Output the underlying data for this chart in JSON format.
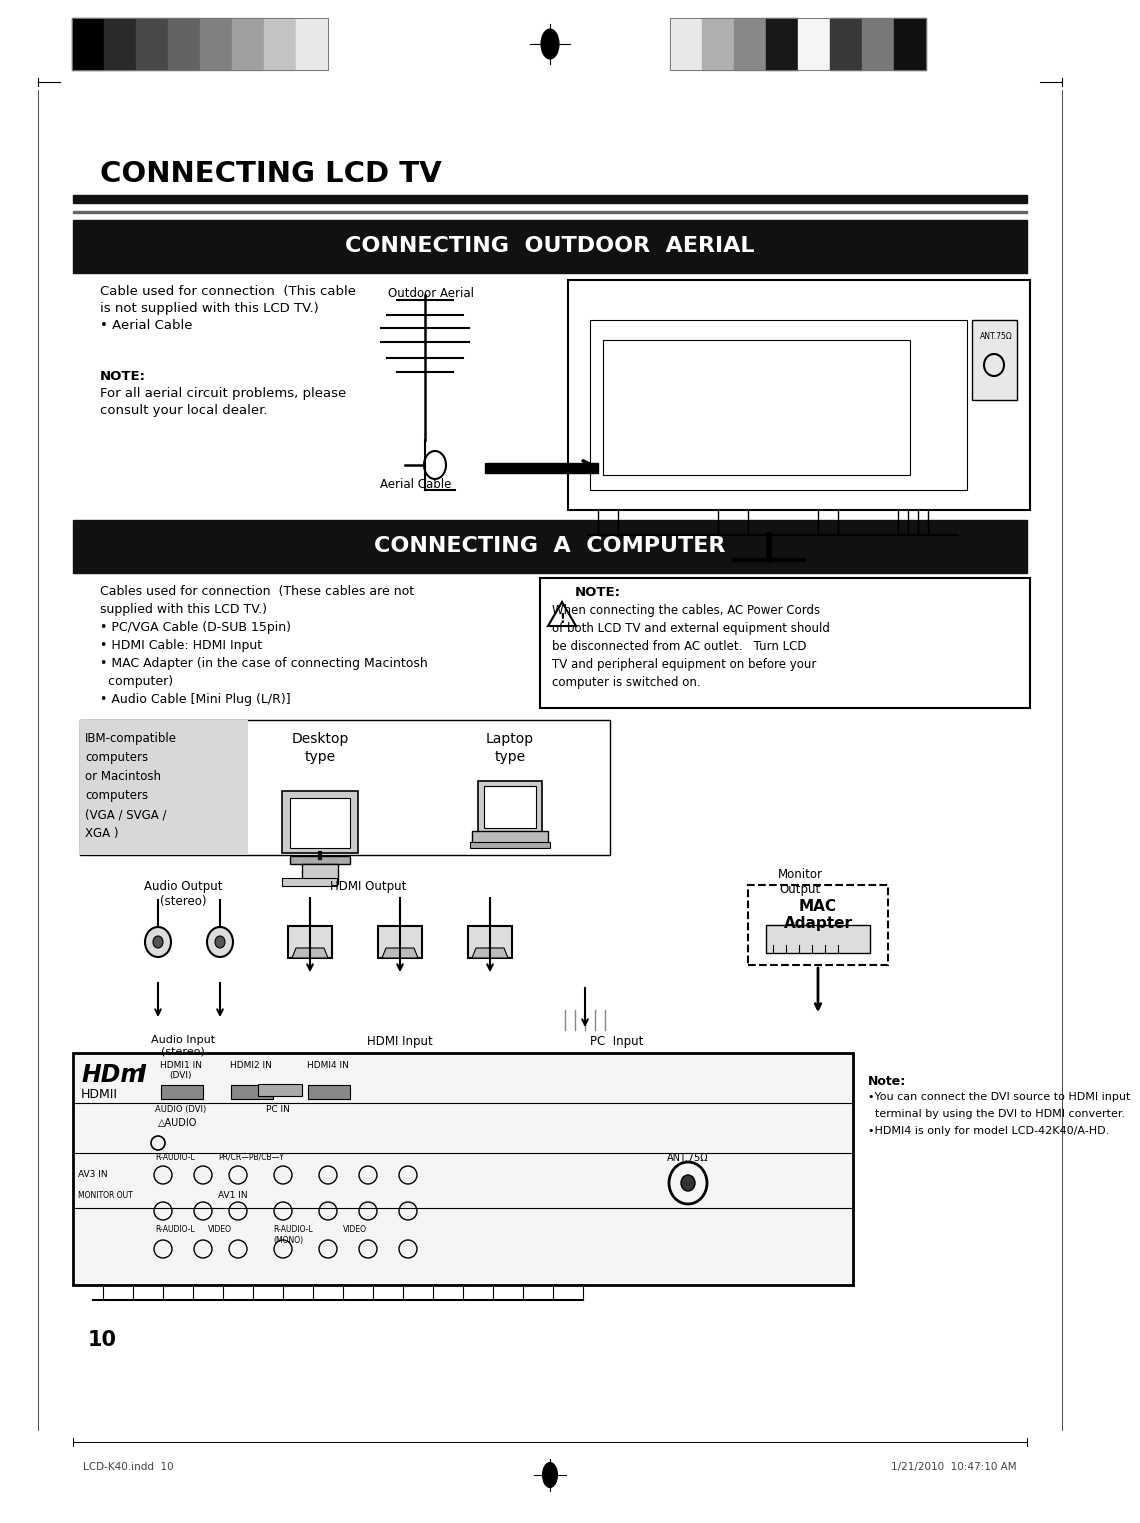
{
  "page_bg": "#ffffff",
  "page_width": 10.8,
  "page_height": 15.03,
  "title_main": "CONNECTING LCD TV",
  "section1_header": "CONNECTING  OUTDOOR  AERIAL",
  "section2_header": "CONNECTING  A  COMPUTER",
  "section1_text_left_lines": [
    "Cable used for connection  (This cable",
    "is not supplied with this LCD TV.)",
    "• Aerial Cable",
    "",
    "",
    "NOTE:",
    "For all aerial circuit problems, please",
    "consult your local dealer."
  ],
  "section2_text_left_lines": [
    "Cables used for connection  (These cables are not",
    "supplied with this LCD TV.)",
    "• PC/VGA Cable (D-SUB 15pin)",
    "• HDMI Cable: HDMI Input",
    "• MAC Adapter (in the case of connecting Macintosh",
    "  computer)",
    "• Audio Cable [Mini Plug (L/R)]"
  ],
  "note_box_lines": [
    "NOTE:",
    "When connecting the cables, AC Power Cords",
    "of both LCD TV and external equipment should",
    "be disconnected from AC outlet.   Turn LCD",
    "TV and peripheral equipment on before your",
    "computer is switched on."
  ],
  "computer_label0": "IBM-compatible\ncomputers\nor Macintosh\ncomputers\n(VGA / SVGA /\nXGA )",
  "computer_label1": "Desktop\ntype",
  "computer_label2": "Laptop\ntype",
  "lbl_audio_out": "Audio Output\n(stereo)",
  "lbl_hdmi_out": "HDMI Output",
  "lbl_monitor_out": "Monitor\nOutput",
  "lbl_mac_adapter": "MAC\nAdapter",
  "lbl_audio_in": "Audio Input\n(stereo)",
  "lbl_hdmi_in": "HDMI Input",
  "lbl_pc_in": "PC  Input",
  "bottom_note_lines": [
    "Note:",
    "•You can connect the DVI source to HDMI input",
    "  terminal by using the DVI to HDMI converter.",
    "•HDMI4 is only for model LCD-42K40/A-HD."
  ],
  "page_number": "10",
  "footer_left": "LCD-K40.indd  10",
  "footer_right": "1/21/2010  10:47:10 AM",
  "left_bar_colors": [
    "#000000",
    "#2a2a2a",
    "#484848",
    "#636363",
    "#808080",
    "#a0a0a0",
    "#c3c3c3",
    "#e8e8e8"
  ],
  "right_bar_colors": [
    "#e8e8e8",
    "#b0b0b0",
    "#888888",
    "#181818",
    "#f5f5f5",
    "#383838",
    "#787878",
    "#111111"
  ]
}
